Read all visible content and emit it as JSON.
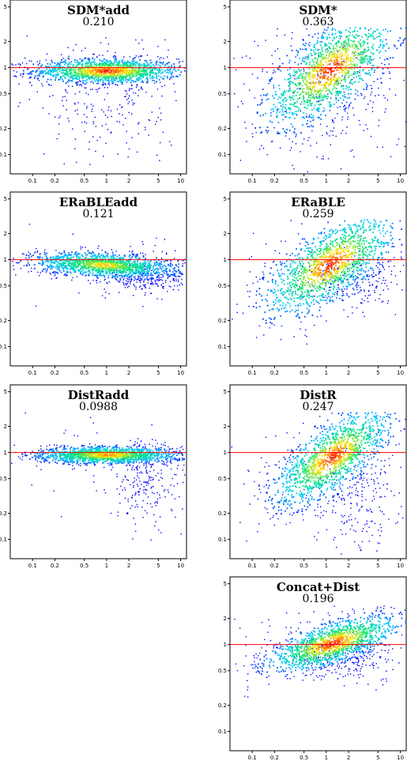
{
  "figure": {
    "colors": {
      "reference_line": "#ff0000",
      "density_low": "#0000ff",
      "density_mid": "#00ffff",
      "density_high": "#ff0000",
      "frame": "#000000"
    },
    "x_ticks": [
      "0.1",
      "0.2",
      "0.5",
      "1",
      "2",
      "5",
      "10"
    ],
    "y_ticks": [
      "5",
      "2",
      "1",
      "0.5",
      "0.2",
      "0.1"
    ]
  },
  "chart_data": [
    {
      "type": "scatter",
      "title": "SDM*add",
      "value": "0.210",
      "xscale": "log",
      "yscale": "log",
      "xlim": [
        0.05,
        12
      ],
      "ylim": [
        0.06,
        6
      ],
      "x_ticks": [
        0.1,
        0.2,
        0.5,
        1,
        2,
        5,
        10
      ],
      "y_ticks": [
        0.1,
        0.2,
        0.5,
        1,
        2,
        5
      ],
      "reference_line_y": 1,
      "cloud": {
        "center": [
          1.0,
          0.93
        ],
        "spread_x": 0.5,
        "spread_y": 0.07,
        "tilt": 0.0
      },
      "tail": {
        "center": [
          1.1,
          0.4
        ],
        "spread_x": 0.45,
        "spread_y": 0.4
      },
      "density_peak": 1.0
    },
    {
      "type": "scatter",
      "title": "SDM*",
      "value": "0.363",
      "xscale": "log",
      "yscale": "log",
      "xlim": [
        0.05,
        12
      ],
      "ylim": [
        0.06,
        6
      ],
      "x_ticks": [
        0.1,
        0.2,
        0.5,
        1,
        2,
        5,
        10
      ],
      "y_ticks": [
        0.1,
        0.2,
        0.5,
        1,
        2,
        5
      ],
      "reference_line_y": 1,
      "cloud": {
        "center": [
          1.1,
          0.95
        ],
        "spread_x": 0.45,
        "spread_y": 0.25,
        "tilt": 0.5
      },
      "tail": {
        "center": [
          1.0,
          0.45
        ],
        "spread_x": 0.5,
        "spread_y": 0.4
      },
      "density_peak": 1.0
    },
    {
      "type": "scatter",
      "title": "ERaBLEadd",
      "value": "0.121",
      "xscale": "log",
      "yscale": "log",
      "xlim": [
        0.05,
        12
      ],
      "ylim": [
        0.06,
        6
      ],
      "x_ticks": [
        0.1,
        0.2,
        0.5,
        1,
        2,
        5,
        10
      ],
      "y_ticks": [
        0.1,
        0.2,
        0.5,
        1,
        2,
        5
      ],
      "reference_line_y": 1,
      "cloud": {
        "center": [
          0.9,
          0.88
        ],
        "spread_x": 0.5,
        "spread_y": 0.07,
        "tilt": -0.05
      },
      "tail": {
        "center": [
          3.5,
          0.62
        ],
        "spread_x": 0.25,
        "spread_y": 0.1
      },
      "density_peak": 0.85
    },
    {
      "type": "scatter",
      "title": "ERaBLE",
      "value": "0.259",
      "xscale": "log",
      "yscale": "log",
      "xlim": [
        0.05,
        12
      ],
      "ylim": [
        0.06,
        6
      ],
      "x_ticks": [
        0.1,
        0.2,
        0.5,
        1,
        2,
        5,
        10
      ],
      "y_ticks": [
        0.1,
        0.2,
        0.5,
        1,
        2,
        5
      ],
      "reference_line_y": 1,
      "cloud": {
        "center": [
          1.1,
          0.9
        ],
        "spread_x": 0.45,
        "spread_y": 0.22,
        "tilt": 0.45
      },
      "tail": {
        "center": [
          2.2,
          0.55
        ],
        "spread_x": 0.35,
        "spread_y": 0.15
      },
      "density_peak": 1.0
    },
    {
      "type": "scatter",
      "title": "DistRadd",
      "value": "0.0988",
      "xscale": "log",
      "yscale": "log",
      "xlim": [
        0.05,
        12
      ],
      "ylim": [
        0.06,
        6
      ],
      "x_ticks": [
        0.1,
        0.2,
        0.5,
        1,
        2,
        5,
        10
      ],
      "y_ticks": [
        0.1,
        0.2,
        0.5,
        1,
        2,
        5
      ],
      "reference_line_y": 1,
      "cloud": {
        "center": [
          1.0,
          0.95
        ],
        "spread_x": 0.5,
        "spread_y": 0.05,
        "tilt": 0.0
      },
      "tail": {
        "center": [
          3.2,
          0.42
        ],
        "spread_x": 0.25,
        "spread_y": 0.25
      },
      "density_peak": 0.9
    },
    {
      "type": "scatter",
      "title": "DistR",
      "value": "0.247",
      "xscale": "log",
      "yscale": "log",
      "xlim": [
        0.05,
        12
      ],
      "ylim": [
        0.06,
        6
      ],
      "x_ticks": [
        0.1,
        0.2,
        0.5,
        1,
        2,
        5,
        10
      ],
      "y_ticks": [
        0.1,
        0.2,
        0.5,
        1,
        2,
        5
      ],
      "reference_line_y": 1,
      "cloud": {
        "center": [
          1.2,
          0.9
        ],
        "spread_x": 0.4,
        "spread_y": 0.2,
        "tilt": 0.5
      },
      "tail": {
        "center": [
          2.8,
          0.3
        ],
        "spread_x": 0.3,
        "spread_y": 0.35
      },
      "density_peak": 1.0
    },
    {
      "type": "scatter",
      "title": "Concat+Dist",
      "value": "0.196",
      "xscale": "log",
      "yscale": "log",
      "xlim": [
        0.05,
        12
      ],
      "ylim": [
        0.06,
        6
      ],
      "x_ticks": [
        0.1,
        0.2,
        0.5,
        1,
        2,
        5,
        10
      ],
      "y_ticks": [
        0.1,
        0.2,
        0.5,
        1,
        2,
        5
      ],
      "reference_line_y": 1,
      "cloud": {
        "center": [
          1.2,
          1.05
        ],
        "spread_x": 0.45,
        "spread_y": 0.12,
        "tilt": 0.25
      },
      "tail": {
        "center": [
          1.6,
          0.7
        ],
        "spread_x": 0.35,
        "spread_y": 0.12
      },
      "density_peak": 1.0
    }
  ]
}
